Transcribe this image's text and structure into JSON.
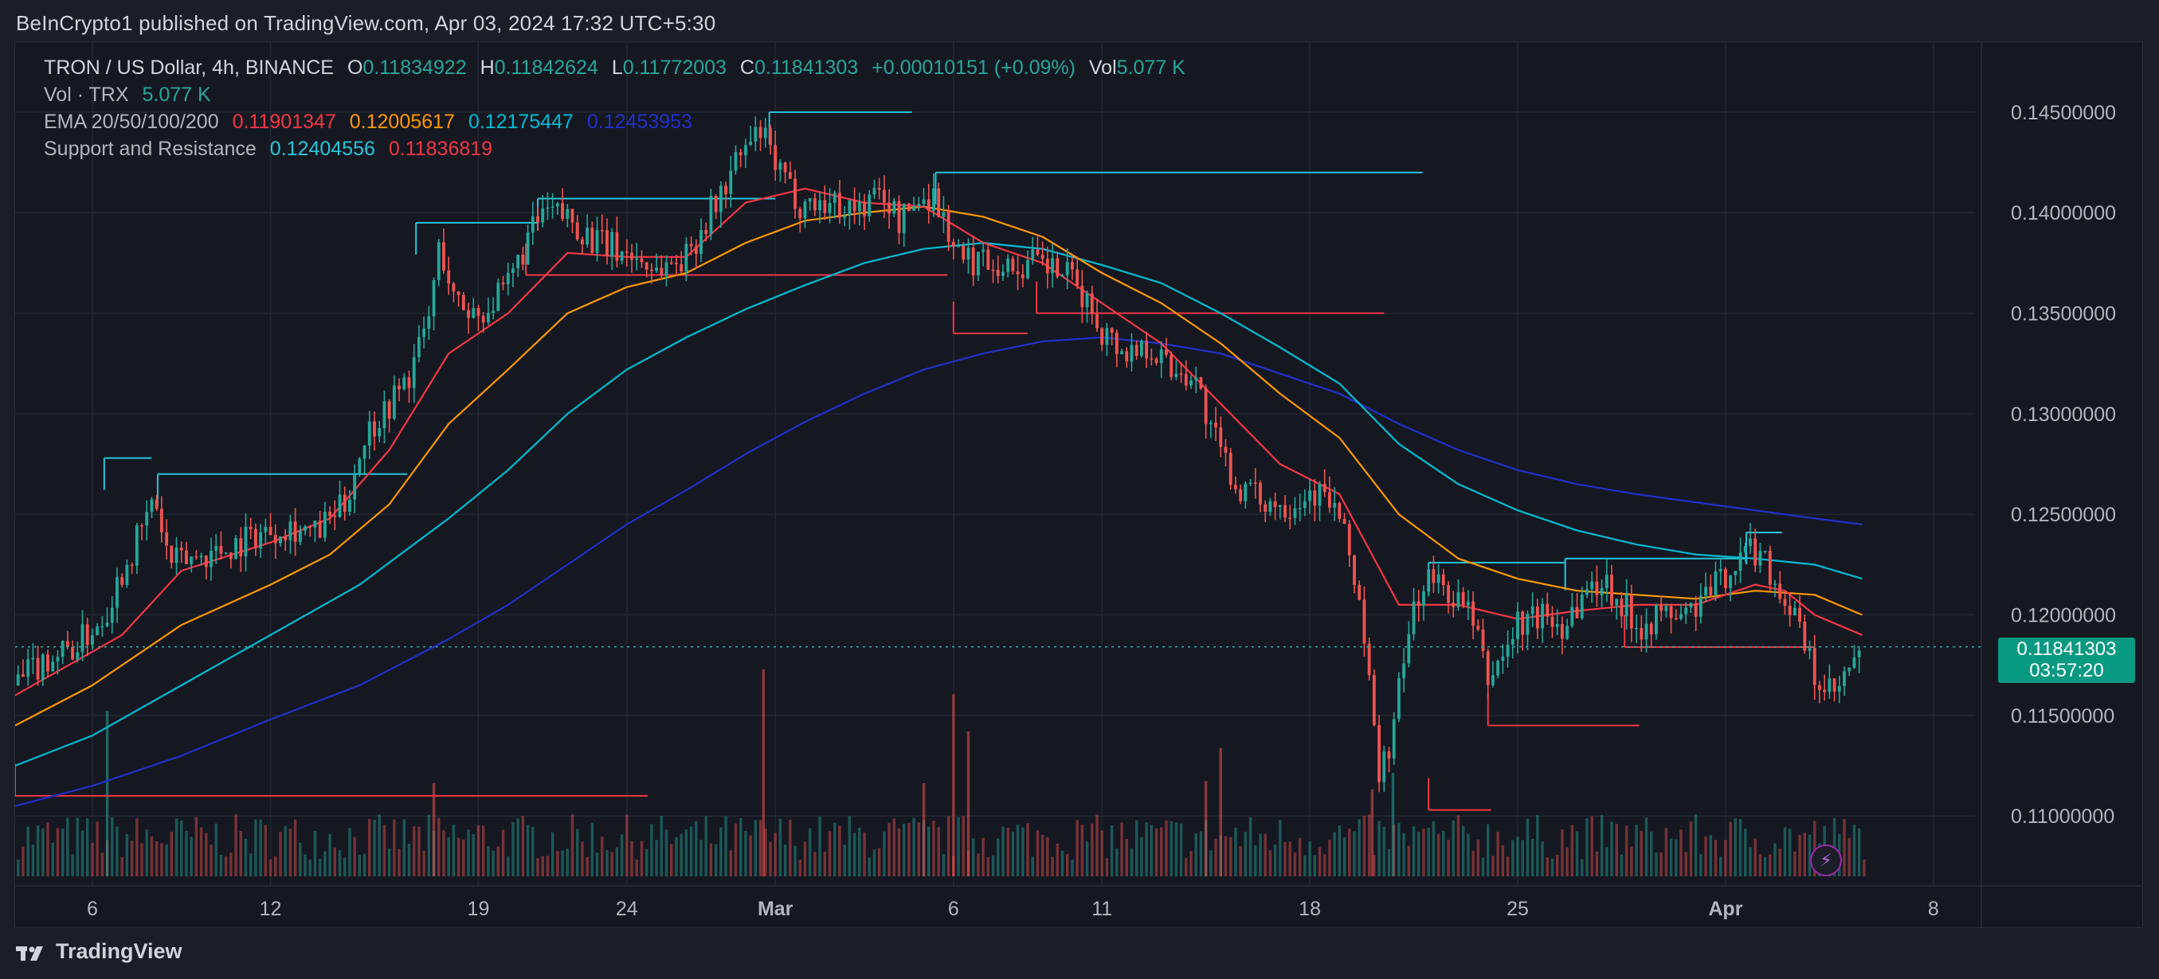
{
  "header": {
    "publisher": "BeInCrypto1 published on TradingView.com, Apr 03, 2024 17:32 UTC+5:30"
  },
  "legend": {
    "symbol": "TRON / US Dollar, 4h, BINANCE",
    "o_label": "O",
    "o_value": "0.11834922",
    "h_label": "H",
    "h_value": "0.11842624",
    "l_label": "L",
    "l_value": "0.11772003",
    "c_label": "C",
    "c_value": "0.11841303",
    "change": "+0.00010151 (+0.09%)",
    "vol_label": "Vol",
    "vol_value": "5.077 K",
    "vol_line_label": "Vol · TRX",
    "vol_line_value": "5.077 K",
    "ema_label": "EMA 20/50/100/200",
    "ema20": "0.11901347",
    "ema50": "0.12005617",
    "ema100": "0.12175447",
    "ema200": "0.12453953",
    "sr_label": "Support and Resistance",
    "sr_res": "0.12404556",
    "sr_sup": "0.11836819"
  },
  "price_tag": {
    "price": "0.11841303",
    "countdown": "03:57:20"
  },
  "footer": {
    "brand": "TradingView"
  },
  "colors": {
    "up": "#26a69a",
    "down": "#ef5350",
    "ema20": "#f23645",
    "ema50": "#ff9800",
    "ema100": "#00bcd4",
    "ema200": "#2130c9",
    "resistance": "#26c6da",
    "support": "#f23645"
  },
  "chart_data": {
    "type": "candlestick",
    "title": "TRON / US Dollar, 4h, BINANCE",
    "y_axis": {
      "range": [
        0.107,
        0.1465
      ],
      "ticks": [
        "0.11000000",
        "0.11500000",
        "0.12000000",
        "0.12500000",
        "0.13000000",
        "0.13500000",
        "0.14000000",
        "0.14500000"
      ]
    },
    "x_axis": {
      "ticks": [
        "6",
        "12",
        "19",
        "24",
        "Mar",
        "6",
        "11",
        "18",
        "25",
        "Apr",
        "8"
      ],
      "tick_days": [
        6,
        12,
        19,
        24,
        29,
        35,
        40,
        47,
        54,
        61,
        68
      ],
      "start_day": 3.4,
      "end_day": 69.4
    },
    "current_price": 0.11841303,
    "price_path": [
      {
        "d": 3.4,
        "p": 0.1165
      },
      {
        "d": 4.4,
        "p": 0.1178
      },
      {
        "d": 5.5,
        "p": 0.1185
      },
      {
        "d": 6.4,
        "p": 0.12
      },
      {
        "d": 7.0,
        "p": 0.1222
      },
      {
        "d": 7.6,
        "p": 0.124
      },
      {
        "d": 8.1,
        "p": 0.1258
      },
      {
        "d": 8.6,
        "p": 0.1225
      },
      {
        "d": 9.3,
        "p": 0.1228
      },
      {
        "d": 10.5,
        "p": 0.1233
      },
      {
        "d": 11.5,
        "p": 0.124
      },
      {
        "d": 12.6,
        "p": 0.1245
      },
      {
        "d": 13.5,
        "p": 0.124
      },
      {
        "d": 14.5,
        "p": 0.1255
      },
      {
        "d": 15.2,
        "p": 0.129
      },
      {
        "d": 16.0,
        "p": 0.1305
      },
      {
        "d": 16.7,
        "p": 0.132
      },
      {
        "d": 17.3,
        "p": 0.1345
      },
      {
        "d": 17.7,
        "p": 0.1385
      },
      {
        "d": 18.2,
        "p": 0.1355
      },
      {
        "d": 19.0,
        "p": 0.135
      },
      {
        "d": 19.9,
        "p": 0.136
      },
      {
        "d": 20.6,
        "p": 0.1385
      },
      {
        "d": 21.2,
        "p": 0.14
      },
      {
        "d": 22.0,
        "p": 0.1398
      },
      {
        "d": 23.0,
        "p": 0.1385
      },
      {
        "d": 24.0,
        "p": 0.138
      },
      {
        "d": 25.0,
        "p": 0.1372
      },
      {
        "d": 26.0,
        "p": 0.1378
      },
      {
        "d": 26.6,
        "p": 0.1395
      },
      {
        "d": 27.2,
        "p": 0.141
      },
      {
        "d": 27.8,
        "p": 0.1428
      },
      {
        "d": 28.5,
        "p": 0.144
      },
      {
        "d": 29.1,
        "p": 0.142
      },
      {
        "d": 29.8,
        "p": 0.1405
      },
      {
        "d": 30.8,
        "p": 0.1405
      },
      {
        "d": 31.8,
        "p": 0.1402
      },
      {
        "d": 32.6,
        "p": 0.141
      },
      {
        "d": 33.2,
        "p": 0.1395
      },
      {
        "d": 33.7,
        "p": 0.1405
      },
      {
        "d": 34.3,
        "p": 0.141
      },
      {
        "d": 34.9,
        "p": 0.1388
      },
      {
        "d": 35.3,
        "p": 0.1375
      },
      {
        "d": 36.1,
        "p": 0.1378
      },
      {
        "d": 36.9,
        "p": 0.1372
      },
      {
        "d": 37.7,
        "p": 0.1375
      },
      {
        "d": 38.7,
        "p": 0.137
      },
      {
        "d": 39.3,
        "p": 0.136
      },
      {
        "d": 40.0,
        "p": 0.1342
      },
      {
        "d": 40.8,
        "p": 0.133
      },
      {
        "d": 41.5,
        "p": 0.1335
      },
      {
        "d": 42.4,
        "p": 0.1322
      },
      {
        "d": 43.1,
        "p": 0.132
      },
      {
        "d": 43.7,
        "p": 0.129
      },
      {
        "d": 44.5,
        "p": 0.1265
      },
      {
        "d": 45.2,
        "p": 0.1258
      },
      {
        "d": 46.2,
        "p": 0.1255
      },
      {
        "d": 47.1,
        "p": 0.1262
      },
      {
        "d": 47.8,
        "p": 0.1255
      },
      {
        "d": 48.3,
        "p": 0.1232
      },
      {
        "d": 48.7,
        "p": 0.1205
      },
      {
        "d": 49.0,
        "p": 0.1165
      },
      {
        "d": 49.3,
        "p": 0.112
      },
      {
        "d": 49.7,
        "p": 0.1135
      },
      {
        "d": 50.1,
        "p": 0.117
      },
      {
        "d": 50.5,
        "p": 0.1205
      },
      {
        "d": 51.0,
        "p": 0.1218
      },
      {
        "d": 51.8,
        "p": 0.121
      },
      {
        "d": 52.4,
        "p": 0.12
      },
      {
        "d": 53.0,
        "p": 0.1168
      },
      {
        "d": 53.5,
        "p": 0.118
      },
      {
        "d": 54.0,
        "p": 0.1195
      },
      {
        "d": 54.8,
        "p": 0.12
      },
      {
        "d": 55.5,
        "p": 0.1195
      },
      {
        "d": 56.2,
        "p": 0.121
      },
      {
        "d": 56.9,
        "p": 0.1218
      },
      {
        "d": 57.5,
        "p": 0.1205
      },
      {
        "d": 58.1,
        "p": 0.1195
      },
      {
        "d": 58.9,
        "p": 0.12
      },
      {
        "d": 59.7,
        "p": 0.12
      },
      {
        "d": 60.4,
        "p": 0.121
      },
      {
        "d": 61.1,
        "p": 0.1222
      },
      {
        "d": 61.7,
        "p": 0.1232
      },
      {
        "d": 62.2,
        "p": 0.1232
      },
      {
        "d": 62.7,
        "p": 0.1215
      },
      {
        "d": 63.3,
        "p": 0.12
      },
      {
        "d": 63.8,
        "p": 0.1178
      },
      {
        "d": 64.2,
        "p": 0.1162
      },
      {
        "d": 64.7,
        "p": 0.116
      },
      {
        "d": 65.2,
        "p": 0.1172
      },
      {
        "d": 65.6,
        "p": 0.1184
      }
    ],
    "ema_paths": {
      "ema20": [
        {
          "d": 3.4,
          "p": 0.116
        },
        {
          "d": 7,
          "p": 0.119
        },
        {
          "d": 9,
          "p": 0.1222
        },
        {
          "d": 12,
          "p": 0.1236
        },
        {
          "d": 14,
          "p": 0.1248
        },
        {
          "d": 16,
          "p": 0.1282
        },
        {
          "d": 18,
          "p": 0.133
        },
        {
          "d": 20,
          "p": 0.135
        },
        {
          "d": 22,
          "p": 0.138
        },
        {
          "d": 24,
          "p": 0.1378
        },
        {
          "d": 26,
          "p": 0.1378
        },
        {
          "d": 28,
          "p": 0.1405
        },
        {
          "d": 30,
          "p": 0.1412
        },
        {
          "d": 32,
          "p": 0.1405
        },
        {
          "d": 34,
          "p": 0.1403
        },
        {
          "d": 36,
          "p": 0.1385
        },
        {
          "d": 38,
          "p": 0.1375
        },
        {
          "d": 40,
          "p": 0.1355
        },
        {
          "d": 42,
          "p": 0.1335
        },
        {
          "d": 44,
          "p": 0.1305
        },
        {
          "d": 46,
          "p": 0.1275
        },
        {
          "d": 48,
          "p": 0.126
        },
        {
          "d": 50,
          "p": 0.1205
        },
        {
          "d": 52,
          "p": 0.1205
        },
        {
          "d": 54,
          "p": 0.1198
        },
        {
          "d": 56,
          "p": 0.1202
        },
        {
          "d": 58,
          "p": 0.1205
        },
        {
          "d": 60,
          "p": 0.1205
        },
        {
          "d": 62,
          "p": 0.1215
        },
        {
          "d": 63,
          "p": 0.1212
        },
        {
          "d": 64,
          "p": 0.12
        },
        {
          "d": 65.6,
          "p": 0.119
        }
      ],
      "ema50": [
        {
          "d": 3.4,
          "p": 0.1145
        },
        {
          "d": 6,
          "p": 0.1165
        },
        {
          "d": 9,
          "p": 0.1195
        },
        {
          "d": 12,
          "p": 0.1215
        },
        {
          "d": 14,
          "p": 0.123
        },
        {
          "d": 16,
          "p": 0.1255
        },
        {
          "d": 18,
          "p": 0.1295
        },
        {
          "d": 20,
          "p": 0.1322
        },
        {
          "d": 22,
          "p": 0.135
        },
        {
          "d": 24,
          "p": 0.1363
        },
        {
          "d": 26,
          "p": 0.137
        },
        {
          "d": 28,
          "p": 0.1385
        },
        {
          "d": 30,
          "p": 0.1396
        },
        {
          "d": 32,
          "p": 0.14
        },
        {
          "d": 34,
          "p": 0.1403
        },
        {
          "d": 36,
          "p": 0.1398
        },
        {
          "d": 38,
          "p": 0.1388
        },
        {
          "d": 40,
          "p": 0.137
        },
        {
          "d": 42,
          "p": 0.1355
        },
        {
          "d": 44,
          "p": 0.1335
        },
        {
          "d": 46,
          "p": 0.131
        },
        {
          "d": 48,
          "p": 0.1288
        },
        {
          "d": 50,
          "p": 0.125
        },
        {
          "d": 52,
          "p": 0.1228
        },
        {
          "d": 54,
          "p": 0.1218
        },
        {
          "d": 56,
          "p": 0.1212
        },
        {
          "d": 58,
          "p": 0.121
        },
        {
          "d": 60,
          "p": 0.1208
        },
        {
          "d": 62,
          "p": 0.1212
        },
        {
          "d": 64,
          "p": 0.121
        },
        {
          "d": 65.6,
          "p": 0.12
        }
      ],
      "ema100": [
        {
          "d": 3.4,
          "p": 0.1125
        },
        {
          "d": 6,
          "p": 0.114
        },
        {
          "d": 9,
          "p": 0.1165
        },
        {
          "d": 12,
          "p": 0.119
        },
        {
          "d": 15,
          "p": 0.1215
        },
        {
          "d": 18,
          "p": 0.1248
        },
        {
          "d": 20,
          "p": 0.1272
        },
        {
          "d": 22,
          "p": 0.13
        },
        {
          "d": 24,
          "p": 0.1322
        },
        {
          "d": 26,
          "p": 0.1338
        },
        {
          "d": 28,
          "p": 0.1352
        },
        {
          "d": 30,
          "p": 0.1364
        },
        {
          "d": 32,
          "p": 0.1375
        },
        {
          "d": 34,
          "p": 0.1382
        },
        {
          "d": 36,
          "p": 0.1385
        },
        {
          "d": 38,
          "p": 0.1382
        },
        {
          "d": 40,
          "p": 0.1374
        },
        {
          "d": 42,
          "p": 0.1365
        },
        {
          "d": 44,
          "p": 0.135
        },
        {
          "d": 46,
          "p": 0.1333
        },
        {
          "d": 48,
          "p": 0.1315
        },
        {
          "d": 50,
          "p": 0.1285
        },
        {
          "d": 52,
          "p": 0.1265
        },
        {
          "d": 54,
          "p": 0.1252
        },
        {
          "d": 56,
          "p": 0.1242
        },
        {
          "d": 58,
          "p": 0.1235
        },
        {
          "d": 60,
          "p": 0.123
        },
        {
          "d": 62,
          "p": 0.1228
        },
        {
          "d": 64,
          "p": 0.1225
        },
        {
          "d": 65.6,
          "p": 0.1218
        }
      ],
      "ema200": [
        {
          "d": 3.4,
          "p": 0.1105
        },
        {
          "d": 6,
          "p": 0.1115
        },
        {
          "d": 9,
          "p": 0.113
        },
        {
          "d": 12,
          "p": 0.1148
        },
        {
          "d": 15,
          "p": 0.1165
        },
        {
          "d": 18,
          "p": 0.1188
        },
        {
          "d": 20,
          "p": 0.1205
        },
        {
          "d": 22,
          "p": 0.1225
        },
        {
          "d": 24,
          "p": 0.1245
        },
        {
          "d": 26,
          "p": 0.1262
        },
        {
          "d": 28,
          "p": 0.128
        },
        {
          "d": 30,
          "p": 0.1296
        },
        {
          "d": 32,
          "p": 0.131
        },
        {
          "d": 34,
          "p": 0.1322
        },
        {
          "d": 36,
          "p": 0.133
        },
        {
          "d": 38,
          "p": 0.1336
        },
        {
          "d": 40,
          "p": 0.1338
        },
        {
          "d": 42,
          "p": 0.1335
        },
        {
          "d": 44,
          "p": 0.133
        },
        {
          "d": 46,
          "p": 0.132
        },
        {
          "d": 48,
          "p": 0.131
        },
        {
          "d": 50,
          "p": 0.1295
        },
        {
          "d": 52,
          "p": 0.1282
        },
        {
          "d": 54,
          "p": 0.1272
        },
        {
          "d": 56,
          "p": 0.1265
        },
        {
          "d": 58,
          "p": 0.126
        },
        {
          "d": 60,
          "p": 0.1256
        },
        {
          "d": 62,
          "p": 0.1252
        },
        {
          "d": 64,
          "p": 0.1248
        },
        {
          "d": 65.6,
          "p": 0.1245
        }
      ]
    },
    "resistance_levels": [
      {
        "d1": 6.4,
        "d2": 8.0,
        "p": 0.1278
      },
      {
        "d1": 8.2,
        "d2": 16.6,
        "p": 0.127
      },
      {
        "d1": 16.9,
        "d2": 21.0,
        "p": 0.1395
      },
      {
        "d1": 21.0,
        "d2": 29.0,
        "p": 0.1407
      },
      {
        "d1": 28.8,
        "d2": 33.6,
        "p": 0.145
      },
      {
        "d1": 34.4,
        "d2": 50.8,
        "p": 0.142
      },
      {
        "d1": 51.0,
        "d2": 55.6,
        "p": 0.1226
      },
      {
        "d1": 55.6,
        "d2": 61.7,
        "p": 0.1228
      },
      {
        "d1": 61.7,
        "d2": 62.9,
        "p": 0.1241
      }
    ],
    "support_levels": [
      {
        "d1": 3.4,
        "d2": 24.7,
        "p": 0.111
      },
      {
        "d1": 20.6,
        "d2": 34.8,
        "p": 0.1369
      },
      {
        "d1": 35.0,
        "d2": 37.5,
        "p": 0.134
      },
      {
        "d1": 37.8,
        "d2": 49.5,
        "p": 0.135
      },
      {
        "d1": 51.0,
        "d2": 53.1,
        "p": 0.1103
      },
      {
        "d1": 53.0,
        "d2": 58.1,
        "p": 0.1145
      },
      {
        "d1": 57.6,
        "d2": 64.0,
        "p": 0.1184
      }
    ],
    "volume_spikes": [
      {
        "d": 6.5,
        "v": 0.8,
        "up": true
      },
      {
        "d": 17.5,
        "v": 0.45,
        "up": false
      },
      {
        "d": 28.6,
        "v": 1.0,
        "up": false
      },
      {
        "d": 34.0,
        "v": 0.45,
        "up": false
      },
      {
        "d": 35.0,
        "v": 0.88,
        "up": false
      },
      {
        "d": 35.5,
        "v": 0.7,
        "up": false
      },
      {
        "d": 43.5,
        "v": 0.46,
        "up": false
      },
      {
        "d": 44.0,
        "v": 0.62,
        "up": false
      },
      {
        "d": 49.1,
        "v": 0.42,
        "up": false
      },
      {
        "d": 49.8,
        "v": 0.5,
        "up": true
      }
    ]
  }
}
